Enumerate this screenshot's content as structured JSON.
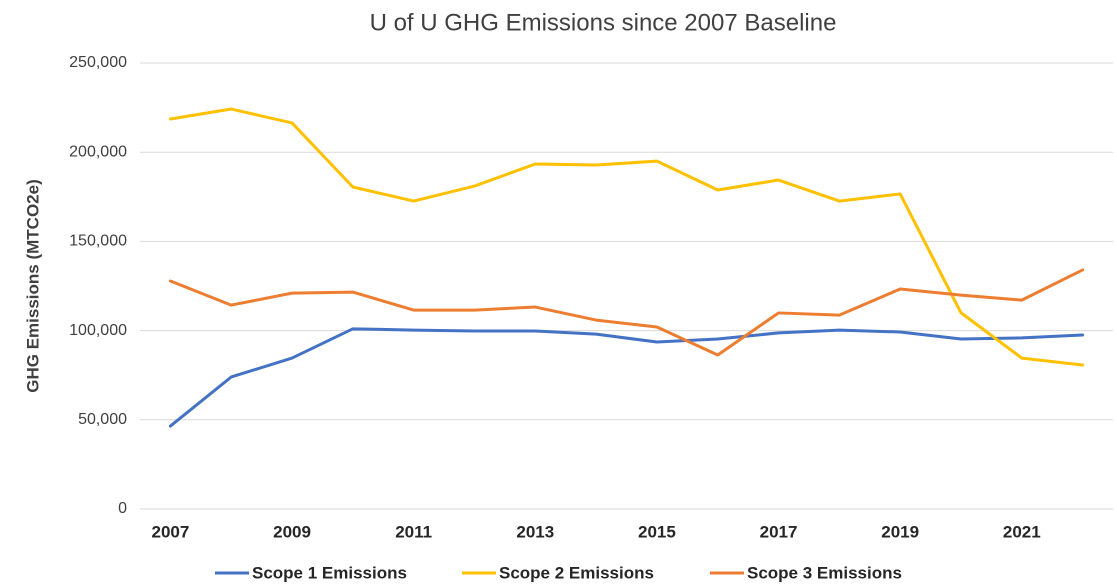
{
  "chart_data": {
    "type": "line",
    "title": "U of U GHG Emissions since 2007 Baseline",
    "y_label": "GHG Emissions (MTCO2e)",
    "x": [
      2007,
      2008,
      2009,
      2010,
      2011,
      2012,
      2013,
      2014,
      2015,
      2016,
      2017,
      2018,
      2019,
      2020,
      2021,
      2022
    ],
    "xlim": [
      2006.5,
      2022.5
    ],
    "xticks": [
      2007,
      2009,
      2011,
      2013,
      2015,
      2017,
      2019,
      2021
    ],
    "ylim": [
      0,
      250000
    ],
    "yticks": [
      0,
      {
        "value": 50000,
        "label": "50,000"
      },
      {
        "value": 100000,
        "label": "100,000"
      },
      {
        "value": 150000,
        "label": "150,000"
      },
      {
        "value": 200000,
        "label": "200,000"
      },
      {
        "value": 250000,
        "label": "250,000"
      }
    ],
    "grid": true,
    "legend": "bottom",
    "series": [
      {
        "name": "Scope 1 Emissions",
        "color": "#4472c4",
        "values": [
          46500,
          74000,
          84600,
          101000,
          100300,
          99800,
          99800,
          98000,
          93600,
          95300,
          98700,
          100300,
          99200,
          95300,
          95900,
          97500
        ]
      },
      {
        "name": "Scope 2 Emissions",
        "color": "#ffc000",
        "values": [
          218600,
          224200,
          216400,
          180500,
          172600,
          181000,
          193400,
          192800,
          195000,
          178800,
          184400,
          172600,
          176600,
          110000,
          84600,
          80700
        ]
      },
      {
        "name": "Scope 3 Emissions",
        "color": "#ed7d31",
        "values": [
          127800,
          114300,
          121000,
          121600,
          111500,
          111500,
          113200,
          105900,
          102000,
          86300,
          109900,
          108700,
          123300,
          119900,
          117100,
          134000
        ]
      }
    ]
  }
}
